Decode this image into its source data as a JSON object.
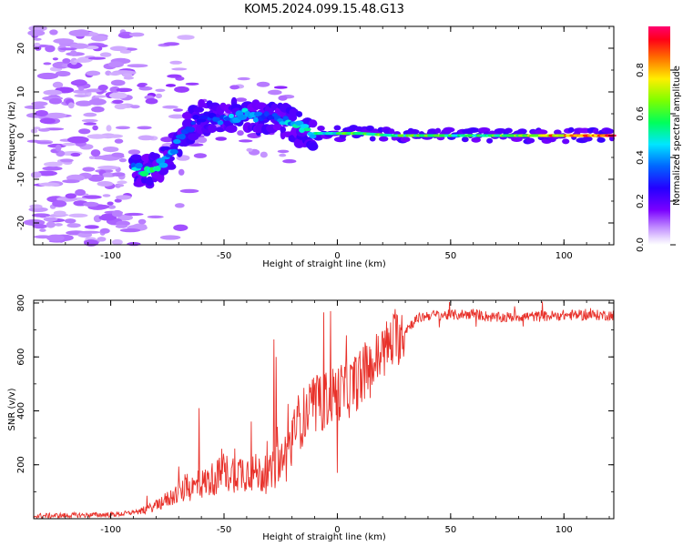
{
  "chart_data": [
    {
      "type": "heatmap",
      "title": "KOM5.2024.099.15.48.G13",
      "xlabel": "Height of straight line (km)",
      "ylabel": "Frequency (Hz)",
      "xlim": [
        -134,
        122
      ],
      "ylim": [
        -25,
        25
      ],
      "xticks": [
        "-100",
        "-50",
        "0",
        "50",
        "100"
      ],
      "yticks": [
        "-20",
        "-10",
        "0",
        "10",
        "20"
      ],
      "colorbar": {
        "label": "Normalized spectral amplitude",
        "range": [
          0.0,
          1.0
        ],
        "ticks": [
          "0.0",
          "0.2",
          "0.4",
          "0.6",
          "0.8"
        ],
        "colormap": "gist_rainbow_r"
      },
      "ridge": [
        {
          "x": -90,
          "y": -8,
          "amp": 0.45
        },
        {
          "x": -80,
          "y": -8,
          "amp": 0.55
        },
        {
          "x": -74,
          "y": -5,
          "amp": 0.4
        },
        {
          "x": -68,
          "y": 1,
          "amp": 0.35
        },
        {
          "x": -60,
          "y": 4,
          "amp": 0.3
        },
        {
          "x": -50,
          "y": 4,
          "amp": 0.4
        },
        {
          "x": -40,
          "y": 5,
          "amp": 0.45
        },
        {
          "x": -30,
          "y": 4,
          "amp": 0.35
        },
        {
          "x": -22,
          "y": 3,
          "amp": 0.45
        },
        {
          "x": -12,
          "y": 0.5,
          "amp": 0.5
        },
        {
          "x": 0,
          "y": 0.5,
          "amp": 0.55
        },
        {
          "x": 10,
          "y": 0.5,
          "amp": 0.7
        },
        {
          "x": 25,
          "y": 0,
          "amp": 0.6
        },
        {
          "x": 40,
          "y": 0,
          "amp": 0.65
        },
        {
          "x": 60,
          "y": 0,
          "amp": 0.55
        },
        {
          "x": 80,
          "y": 0,
          "amp": 0.7
        },
        {
          "x": 100,
          "y": 0,
          "amp": 0.9
        },
        {
          "x": 122,
          "y": 0,
          "amp": 0.95
        }
      ]
    },
    {
      "type": "line",
      "xlabel": "Height of straight line (km)",
      "ylabel": "SNR (v/v)",
      "xlim": [
        -134,
        122
      ],
      "ylim": [
        0,
        810
      ],
      "xticks": [
        "-100",
        "-50",
        "0",
        "50",
        "100"
      ],
      "yticks": [
        "200",
        "400",
        "600",
        "800"
      ],
      "color": "#ff0000",
      "envelope": {
        "x": [
          -134,
          -100,
          -92,
          -85,
          -80,
          -70,
          -60,
          -50,
          -40,
          -30,
          -25,
          -20,
          -15,
          -10,
          -5,
          0,
          5,
          10,
          15,
          20,
          25,
          30,
          35,
          40,
          50,
          60,
          70,
          80,
          90,
          100,
          110,
          122
        ],
        "y": [
          10,
          15,
          20,
          40,
          60,
          120,
          160,
          210,
          220,
          200,
          260,
          330,
          380,
          410,
          440,
          470,
          480,
          520,
          560,
          620,
          660,
          700,
          740,
          755,
          755,
          760,
          745,
          750,
          750,
          755,
          755,
          755
        ]
      },
      "peaks": [
        {
          "x": -61,
          "y": 410
        },
        {
          "x": -38,
          "y": 360
        },
        {
          "x": -28,
          "y": 665
        },
        {
          "x": -27,
          "y": 600
        },
        {
          "x": -6,
          "y": 765
        },
        {
          "x": -3,
          "y": 770
        },
        {
          "x": 0,
          "y": 170
        },
        {
          "x": 4,
          "y": 680
        }
      ]
    }
  ]
}
